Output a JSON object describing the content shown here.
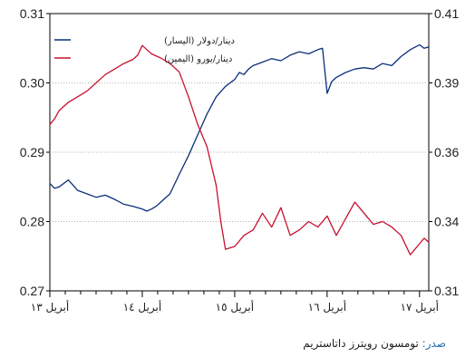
{
  "chart_data": {
    "type": "line",
    "left_axis": {
      "min": 0.27,
      "max": 0.31,
      "ticks": [
        "0.27",
        "0.28",
        "0.29",
        "0.30",
        "0.31"
      ]
    },
    "right_axis": {
      "min": 0.31,
      "max": 0.41,
      "ticks": [
        "0.31",
        "0.34",
        "0.36",
        "0.39",
        "0.41"
      ]
    },
    "x_labels": [
      "أبريل ١٣",
      "أبريل ١٤",
      "أبريل ١٥",
      "أبريل ١٦",
      "أبريل ١٧"
    ],
    "grid": "horizontal",
    "legend_position": "top-left",
    "series": [
      {
        "name": "دينار/دولار (اليسار)",
        "axis": "left",
        "color": "#0b2f7a",
        "x": [
          0,
          0.05,
          0.1,
          0.2,
          0.3,
          0.4,
          0.5,
          0.6,
          0.7,
          0.8,
          0.9,
          0.95,
          1.0,
          1.05,
          1.1,
          1.15,
          1.2,
          1.3,
          1.4,
          1.5,
          1.6,
          1.7,
          1.8,
          1.9,
          2.0,
          2.05,
          2.1,
          2.15,
          2.2,
          2.3,
          2.4,
          2.5,
          2.6,
          2.7,
          2.8,
          2.9,
          2.95,
          3.0,
          3.05,
          3.1,
          3.2,
          3.3,
          3.4,
          3.5,
          3.6,
          3.7,
          3.8,
          3.9,
          4.0,
          4.05,
          4.1
        ],
        "values": [
          0.2855,
          0.2848,
          0.285,
          0.286,
          0.2845,
          0.284,
          0.2835,
          0.2838,
          0.2832,
          0.2825,
          0.2822,
          0.282,
          0.2818,
          0.2815,
          0.2818,
          0.2822,
          0.2828,
          0.284,
          0.2868,
          0.2895,
          0.2925,
          0.2955,
          0.298,
          0.2995,
          0.3005,
          0.3015,
          0.3012,
          0.302,
          0.3025,
          0.303,
          0.3035,
          0.3032,
          0.304,
          0.3045,
          0.3042,
          0.3048,
          0.305,
          0.2985,
          0.3002,
          0.3008,
          0.3015,
          0.302,
          0.3022,
          0.302,
          0.3028,
          0.3025,
          0.3038,
          0.3048,
          0.3055,
          0.305,
          0.3052
        ]
      },
      {
        "name": "دينار/يورو (اليمين)",
        "axis": "right",
        "color": "#c8102e",
        "x": [
          0,
          0.05,
          0.1,
          0.2,
          0.3,
          0.4,
          0.5,
          0.6,
          0.7,
          0.8,
          0.9,
          0.95,
          1.0,
          1.05,
          1.1,
          1.2,
          1.3,
          1.4,
          1.5,
          1.6,
          1.7,
          1.8,
          1.85,
          1.9,
          2.0,
          2.1,
          2.2,
          2.3,
          2.4,
          2.5,
          2.6,
          2.7,
          2.8,
          2.9,
          3.0,
          3.1,
          3.2,
          3.3,
          3.4,
          3.5,
          3.6,
          3.7,
          3.8,
          3.9,
          3.95,
          4.0,
          4.05,
          4.1
        ],
        "values": [
          0.37,
          0.372,
          0.375,
          0.378,
          0.38,
          0.382,
          0.385,
          0.388,
          0.39,
          0.392,
          0.3935,
          0.395,
          0.3985,
          0.397,
          0.3955,
          0.394,
          0.392,
          0.389,
          0.38,
          0.37,
          0.362,
          0.348,
          0.335,
          0.325,
          0.326,
          0.33,
          0.332,
          0.338,
          0.333,
          0.34,
          0.33,
          0.332,
          0.335,
          0.333,
          0.337,
          0.33,
          0.336,
          0.342,
          0.338,
          0.334,
          0.335,
          0.333,
          0.33,
          0.323,
          0.325,
          0.327,
          0.329,
          0.3275
        ]
      }
    ]
  },
  "source": {
    "label": "صدر:",
    "text": "تومسون رويترز داتاستريم"
  }
}
